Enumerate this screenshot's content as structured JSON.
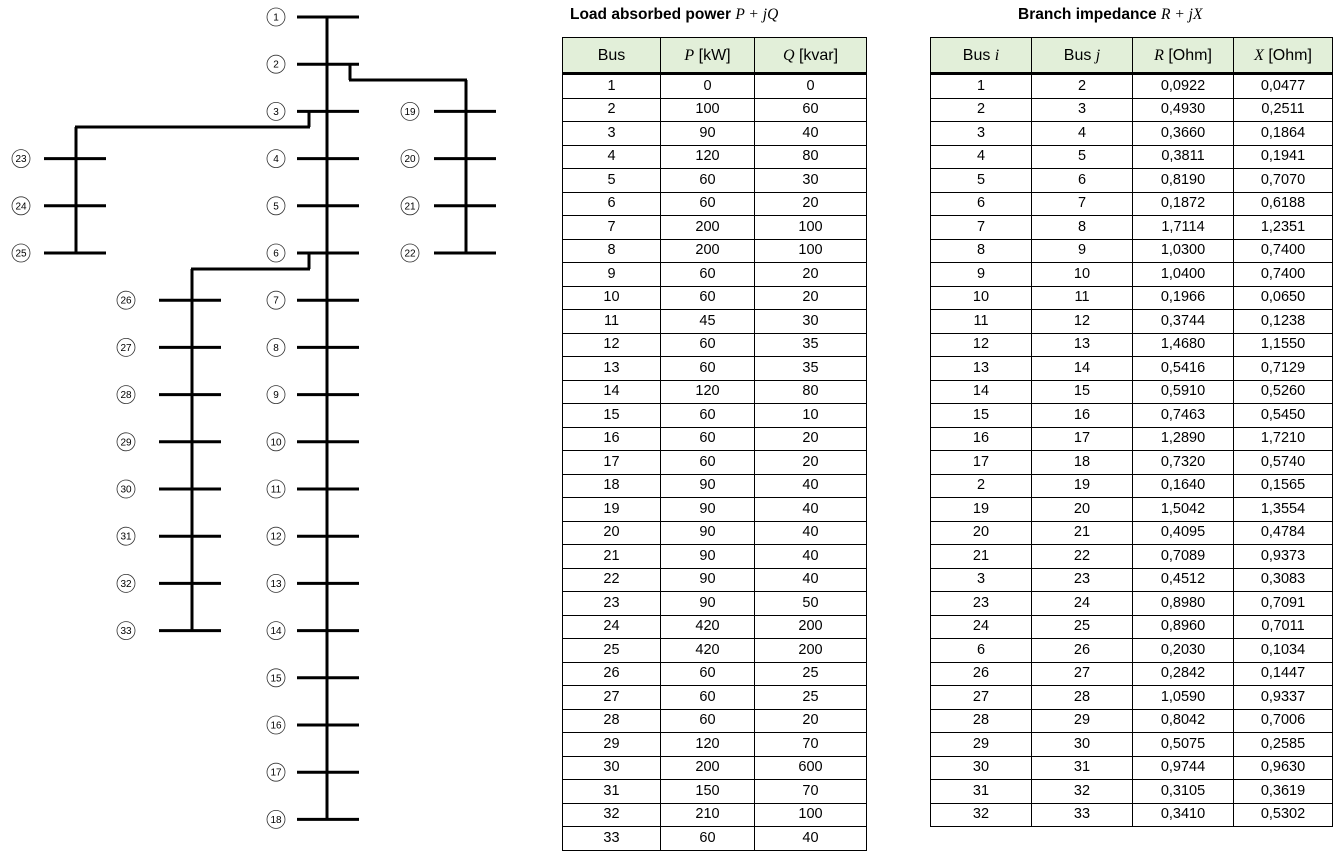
{
  "diagram": {
    "main_feeder": [
      "1",
      "2",
      "3",
      "4",
      "5",
      "6",
      "7",
      "8",
      "9",
      "10",
      "11",
      "12",
      "13",
      "14",
      "15",
      "16",
      "17",
      "18"
    ],
    "lateral_19_22": [
      "19",
      "20",
      "21",
      "22"
    ],
    "lateral_23_25": [
      "23",
      "24",
      "25"
    ],
    "lateral_26_33": [
      "26",
      "27",
      "28",
      "29",
      "30",
      "31",
      "32",
      "33"
    ]
  },
  "load_table": {
    "title_text": "Load absorbed power ",
    "title_math": "P + jQ",
    "headers": {
      "bus": "Bus",
      "p_var": "P",
      "p_unit": " [kW]",
      "q_var": "Q",
      "q_unit": " [kvar]"
    },
    "rows": [
      [
        "1",
        "0",
        "0"
      ],
      [
        "2",
        "100",
        "60"
      ],
      [
        "3",
        "90",
        "40"
      ],
      [
        "4",
        "120",
        "80"
      ],
      [
        "5",
        "60",
        "30"
      ],
      [
        "6",
        "60",
        "20"
      ],
      [
        "7",
        "200",
        "100"
      ],
      [
        "8",
        "200",
        "100"
      ],
      [
        "9",
        "60",
        "20"
      ],
      [
        "10",
        "60",
        "20"
      ],
      [
        "11",
        "45",
        "30"
      ],
      [
        "12",
        "60",
        "35"
      ],
      [
        "13",
        "60",
        "35"
      ],
      [
        "14",
        "120",
        "80"
      ],
      [
        "15",
        "60",
        "10"
      ],
      [
        "16",
        "60",
        "20"
      ],
      [
        "17",
        "60",
        "20"
      ],
      [
        "18",
        "90",
        "40"
      ],
      [
        "19",
        "90",
        "40"
      ],
      [
        "20",
        "90",
        "40"
      ],
      [
        "21",
        "90",
        "40"
      ],
      [
        "22",
        "90",
        "40"
      ],
      [
        "23",
        "90",
        "50"
      ],
      [
        "24",
        "420",
        "200"
      ],
      [
        "25",
        "420",
        "200"
      ],
      [
        "26",
        "60",
        "25"
      ],
      [
        "27",
        "60",
        "25"
      ],
      [
        "28",
        "60",
        "20"
      ],
      [
        "29",
        "120",
        "70"
      ],
      [
        "30",
        "200",
        "600"
      ],
      [
        "31",
        "150",
        "70"
      ],
      [
        "32",
        "210",
        "100"
      ],
      [
        "33",
        "60",
        "40"
      ]
    ]
  },
  "impedance_table": {
    "title_text": "Branch impedance ",
    "title_math": "R + jX",
    "headers": {
      "bus_i_text": "Bus ",
      "bus_i_var": "i",
      "bus_j_text": "Bus ",
      "bus_j_var": "j",
      "r_var": "R",
      "r_unit": " [Ohm]",
      "x_var": "X",
      "x_unit": " [Ohm]"
    },
    "rows": [
      [
        "1",
        "2",
        "0,0922",
        "0,0477"
      ],
      [
        "2",
        "3",
        "0,4930",
        "0,2511"
      ],
      [
        "3",
        "4",
        "0,3660",
        "0,1864"
      ],
      [
        "4",
        "5",
        "0,3811",
        "0,1941"
      ],
      [
        "5",
        "6",
        "0,8190",
        "0,7070"
      ],
      [
        "6",
        "7",
        "0,1872",
        "0,6188"
      ],
      [
        "7",
        "8",
        "1,7114",
        "1,2351"
      ],
      [
        "8",
        "9",
        "1,0300",
        "0,7400"
      ],
      [
        "9",
        "10",
        "1,0400",
        "0,7400"
      ],
      [
        "10",
        "11",
        "0,1966",
        "0,0650"
      ],
      [
        "11",
        "12",
        "0,3744",
        "0,1238"
      ],
      [
        "12",
        "13",
        "1,4680",
        "1,1550"
      ],
      [
        "13",
        "14",
        "0,5416",
        "0,7129"
      ],
      [
        "14",
        "15",
        "0,5910",
        "0,5260"
      ],
      [
        "15",
        "16",
        "0,7463",
        "0,5450"
      ],
      [
        "16",
        "17",
        "1,2890",
        "1,7210"
      ],
      [
        "17",
        "18",
        "0,7320",
        "0,5740"
      ],
      [
        "2",
        "19",
        "0,1640",
        "0,1565"
      ],
      [
        "19",
        "20",
        "1,5042",
        "1,3554"
      ],
      [
        "20",
        "21",
        "0,4095",
        "0,4784"
      ],
      [
        "21",
        "22",
        "0,7089",
        "0,9373"
      ],
      [
        "3",
        "23",
        "0,4512",
        "0,3083"
      ],
      [
        "23",
        "24",
        "0,8980",
        "0,7091"
      ],
      [
        "24",
        "25",
        "0,8960",
        "0,7011"
      ],
      [
        "6",
        "26",
        "0,2030",
        "0,1034"
      ],
      [
        "26",
        "27",
        "0,2842",
        "0,1447"
      ],
      [
        "27",
        "28",
        "1,0590",
        "0,9337"
      ],
      [
        "28",
        "29",
        "0,8042",
        "0,7006"
      ],
      [
        "29",
        "30",
        "0,5075",
        "0,2585"
      ],
      [
        "30",
        "31",
        "0,9744",
        "0,9630"
      ],
      [
        "31",
        "32",
        "0,3105",
        "0,3619"
      ],
      [
        "32",
        "33",
        "0,3410",
        "0,5302"
      ]
    ]
  },
  "colors": {
    "header_fill": "#e2efd9",
    "line": "#000000"
  }
}
